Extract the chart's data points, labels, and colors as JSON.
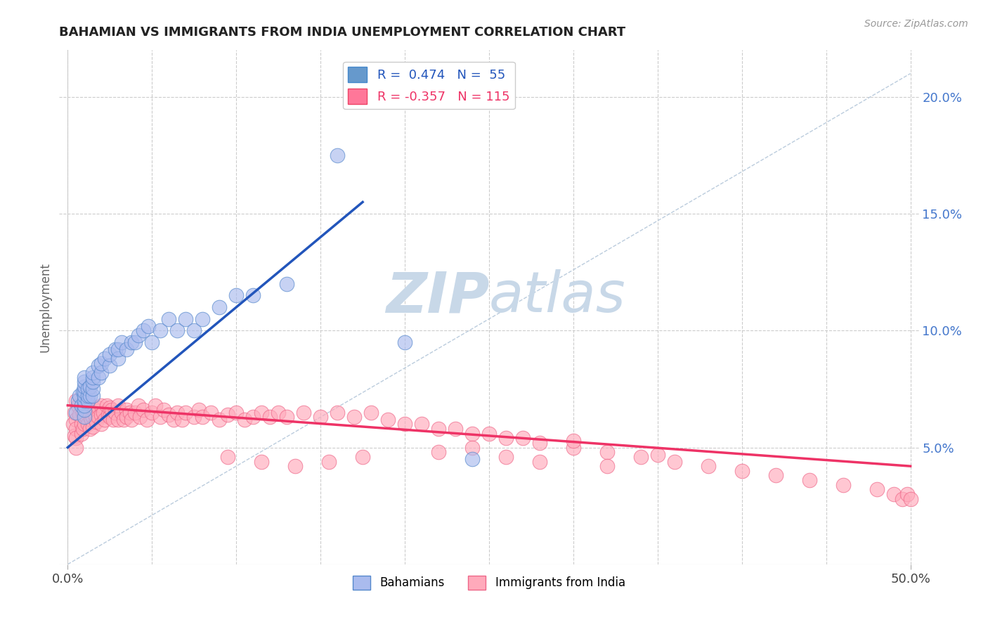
{
  "title": "BAHAMIAN VS IMMIGRANTS FROM INDIA UNEMPLOYMENT CORRELATION CHART",
  "source_text": "Source: ZipAtlas.com",
  "ylabel": "Unemployment",
  "xlim": [
    -0.005,
    0.505
  ],
  "ylim": [
    0.0,
    0.22
  ],
  "yticks_right": [
    0.05,
    0.1,
    0.15,
    0.2
  ],
  "ytick_labels_right": [
    "5.0%",
    "10.0%",
    "15.0%",
    "20.0%"
  ],
  "legend_color1": "#6699cc",
  "legend_color2": "#ff7799",
  "bahamian_color": "#aabbee",
  "india_color": "#ffaabb",
  "blue_line_color": "#2255bb",
  "pink_line_color": "#ee3366",
  "dashed_line_color": "#bbccdd",
  "watermark_zip_color": "#c8d8e8",
  "watermark_atlas_color": "#c8d8e8",
  "background_color": "#ffffff",
  "grid_color": "#cccccc",
  "title_color": "#222222",
  "bahamians_x": [
    0.005,
    0.006,
    0.007,
    0.008,
    0.009,
    0.01,
    0.01,
    0.01,
    0.01,
    0.01,
    0.01,
    0.01,
    0.01,
    0.01,
    0.012,
    0.012,
    0.012,
    0.013,
    0.013,
    0.015,
    0.015,
    0.015,
    0.015,
    0.015,
    0.018,
    0.018,
    0.02,
    0.02,
    0.022,
    0.025,
    0.025,
    0.028,
    0.03,
    0.03,
    0.032,
    0.035,
    0.038,
    0.04,
    0.042,
    0.045,
    0.048,
    0.05,
    0.055,
    0.06,
    0.065,
    0.07,
    0.075,
    0.08,
    0.09,
    0.1,
    0.11,
    0.13,
    0.16,
    0.2,
    0.24
  ],
  "bahamians_y": [
    0.065,
    0.07,
    0.072,
    0.068,
    0.074,
    0.063,
    0.066,
    0.068,
    0.07,
    0.072,
    0.074,
    0.076,
    0.078,
    0.08,
    0.07,
    0.072,
    0.075,
    0.072,
    0.076,
    0.072,
    0.075,
    0.078,
    0.08,
    0.082,
    0.08,
    0.085,
    0.082,
    0.086,
    0.088,
    0.085,
    0.09,
    0.092,
    0.088,
    0.092,
    0.095,
    0.092,
    0.095,
    0.095,
    0.098,
    0.1,
    0.102,
    0.095,
    0.1,
    0.105,
    0.1,
    0.105,
    0.1,
    0.105,
    0.11,
    0.115,
    0.115,
    0.12,
    0.175,
    0.095,
    0.045
  ],
  "india_x": [
    0.003,
    0.004,
    0.004,
    0.005,
    0.005,
    0.005,
    0.005,
    0.005,
    0.006,
    0.007,
    0.008,
    0.008,
    0.009,
    0.009,
    0.01,
    0.01,
    0.01,
    0.011,
    0.012,
    0.012,
    0.013,
    0.013,
    0.014,
    0.015,
    0.015,
    0.015,
    0.016,
    0.017,
    0.018,
    0.018,
    0.02,
    0.02,
    0.02,
    0.021,
    0.022,
    0.023,
    0.024,
    0.025,
    0.025,
    0.026,
    0.027,
    0.028,
    0.03,
    0.03,
    0.032,
    0.033,
    0.035,
    0.035,
    0.037,
    0.038,
    0.04,
    0.042,
    0.043,
    0.045,
    0.047,
    0.05,
    0.052,
    0.055,
    0.057,
    0.06,
    0.063,
    0.065,
    0.068,
    0.07,
    0.075,
    0.078,
    0.08,
    0.085,
    0.09,
    0.095,
    0.1,
    0.105,
    0.11,
    0.115,
    0.12,
    0.125,
    0.13,
    0.14,
    0.15,
    0.16,
    0.17,
    0.18,
    0.19,
    0.2,
    0.21,
    0.22,
    0.23,
    0.24,
    0.25,
    0.26,
    0.27,
    0.28,
    0.3,
    0.32,
    0.34,
    0.36,
    0.38,
    0.4,
    0.42,
    0.44,
    0.46,
    0.48,
    0.49,
    0.495,
    0.498,
    0.5,
    0.3,
    0.35,
    0.28,
    0.32,
    0.26,
    0.24,
    0.22,
    0.175,
    0.155,
    0.135,
    0.115,
    0.095
  ],
  "india_y": [
    0.06,
    0.065,
    0.055,
    0.07,
    0.062,
    0.058,
    0.054,
    0.05,
    0.068,
    0.064,
    0.06,
    0.056,
    0.065,
    0.058,
    0.068,
    0.064,
    0.06,
    0.063,
    0.066,
    0.06,
    0.063,
    0.058,
    0.062,
    0.067,
    0.063,
    0.059,
    0.064,
    0.061,
    0.067,
    0.063,
    0.068,
    0.064,
    0.06,
    0.065,
    0.062,
    0.068,
    0.064,
    0.067,
    0.063,
    0.066,
    0.062,
    0.065,
    0.068,
    0.062,
    0.065,
    0.062,
    0.066,
    0.063,
    0.065,
    0.062,
    0.065,
    0.068,
    0.063,
    0.066,
    0.062,
    0.065,
    0.068,
    0.063,
    0.066,
    0.064,
    0.062,
    0.065,
    0.062,
    0.065,
    0.063,
    0.066,
    0.063,
    0.065,
    0.062,
    0.064,
    0.065,
    0.062,
    0.063,
    0.065,
    0.063,
    0.065,
    0.063,
    0.065,
    0.063,
    0.065,
    0.063,
    0.065,
    0.062,
    0.06,
    0.06,
    0.058,
    0.058,
    0.056,
    0.056,
    0.054,
    0.054,
    0.052,
    0.05,
    0.048,
    0.046,
    0.044,
    0.042,
    0.04,
    0.038,
    0.036,
    0.034,
    0.032,
    0.03,
    0.028,
    0.03,
    0.028,
    0.053,
    0.047,
    0.044,
    0.042,
    0.046,
    0.05,
    0.048,
    0.046,
    0.044,
    0.042,
    0.044,
    0.046
  ],
  "blue_line_x": [
    0.0,
    0.175
  ],
  "blue_line_y": [
    0.05,
    0.155
  ],
  "pink_line_x": [
    0.0,
    0.5
  ],
  "pink_line_y": [
    0.068,
    0.042
  ]
}
